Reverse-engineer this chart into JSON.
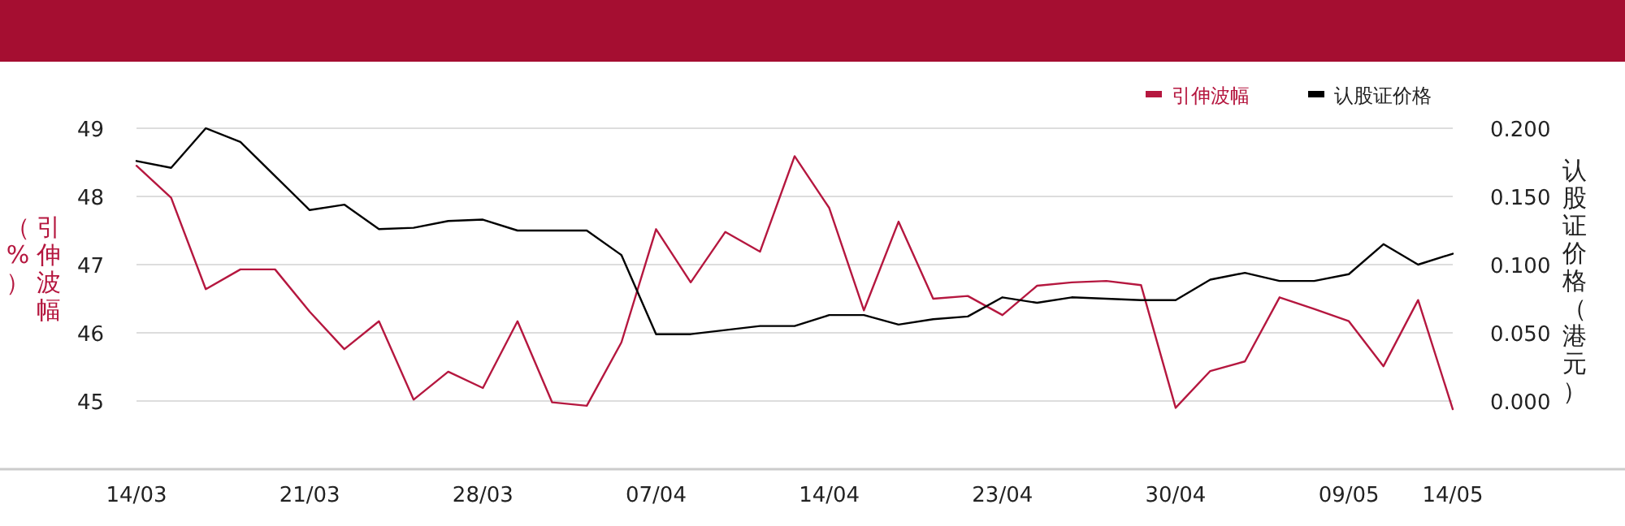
{
  "chart_data": {
    "type": "line",
    "categories": [
      "14/03",
      null,
      null,
      null,
      null,
      "21/03",
      null,
      null,
      null,
      null,
      "28/03",
      null,
      null,
      null,
      null,
      "07/04",
      null,
      null,
      null,
      null,
      "14/04",
      null,
      null,
      null,
      null,
      "23/04",
      null,
      null,
      null,
      null,
      "30/04",
      null,
      null,
      null,
      null,
      "09/05",
      null,
      null,
      "14/05"
    ],
    "series": [
      {
        "name": "引伸波幅",
        "color": "#b5173f",
        "values": [
          48.45,
          47.98,
          46.64,
          46.93,
          46.93,
          46.31,
          45.76,
          46.17,
          45.02,
          45.43,
          45.19,
          46.17,
          44.98,
          44.93,
          45.86,
          47.52,
          46.74,
          47.48,
          47.19,
          48.59,
          47.83,
          46.33,
          47.63,
          46.5,
          46.54,
          46.26,
          46.69,
          46.74,
          46.76,
          46.7,
          44.9,
          45.44,
          45.58,
          46.52,
          46.35,
          46.17,
          45.51,
          46.48,
          44.88
        ]
      },
      {
        "name": "认股证价格",
        "color": "#000000",
        "axis": "y2",
        "values": [
          0.176,
          0.171,
          0.2,
          0.19,
          0.165,
          0.14,
          0.144,
          0.126,
          0.127,
          0.132,
          0.133,
          0.125,
          0.125,
          0.125,
          0.107,
          0.049,
          0.049,
          0.052,
          0.055,
          0.055,
          0.063,
          0.063,
          0.056,
          0.06,
          0.062,
          0.076,
          0.072,
          0.076,
          0.075,
          0.074,
          0.074,
          0.089,
          0.094,
          0.088,
          0.088,
          0.093,
          0.115,
          0.1,
          0.108
        ]
      }
    ],
    "ylabel": "（%）引伸波幅",
    "y2label": "认股证价格（港元）",
    "ylim": [
      44,
      49
    ],
    "yticks": [
      45,
      46,
      47,
      48,
      49
    ],
    "y2lim": [
      -0.05,
      0.2
    ],
    "y2ticks": [
      {
        "value": 0,
        "label": "0.000"
      },
      {
        "value": 0.05,
        "label": "0.050"
      },
      {
        "value": 0.1,
        "label": "0.100"
      },
      {
        "value": 0.15,
        "label": "0.150"
      },
      {
        "value": 0.2,
        "label": "0.200"
      }
    ],
    "grid": "y",
    "legend": "top right",
    "marker": "none",
    "line_style": "solid"
  }
}
